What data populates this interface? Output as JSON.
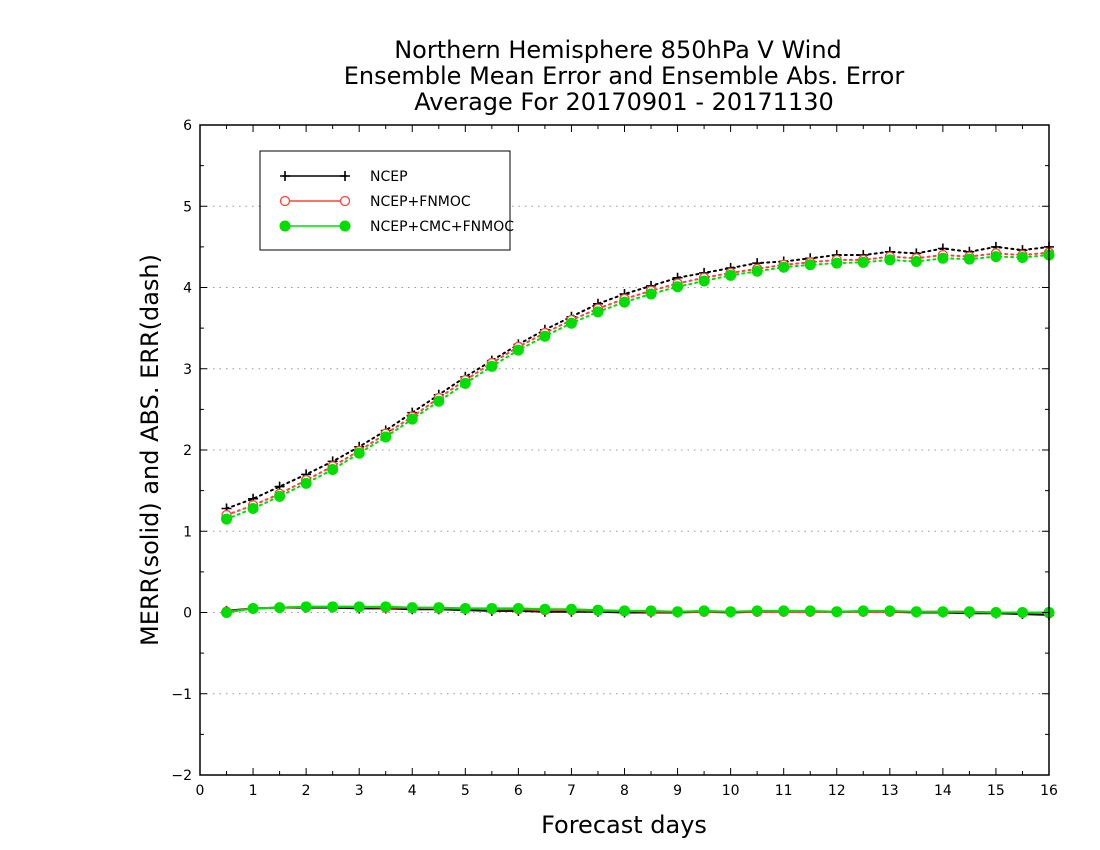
{
  "chart_data": {
    "type": "line",
    "title": [
      "Northern Hemisphere 850hPa V Wind",
      "Ensemble Mean Error and Ensemble Abs. Error",
      "Average For 20170901 - 20171130"
    ],
    "xlabel": "Forecast days",
    "ylabel": "MERR(solid) and ABS. ERR(dash)",
    "xlim": [
      0,
      16
    ],
    "ylim": [
      -2,
      6
    ],
    "xticks": [
      0,
      1,
      2,
      3,
      4,
      5,
      6,
      7,
      8,
      9,
      10,
      11,
      12,
      13,
      14,
      15,
      16
    ],
    "yticks": [
      -2,
      -1,
      0,
      1,
      2,
      3,
      4,
      5,
      6
    ],
    "ytick_labels": [
      "−2",
      "−1",
      "0",
      "1",
      "2",
      "3",
      "4",
      "5",
      "6"
    ],
    "grid": "horizontal dotted",
    "legend_position": "top-left",
    "x": [
      0.5,
      1,
      1.5,
      2,
      2.5,
      3,
      3.5,
      4,
      4.5,
      5,
      5.5,
      6,
      6.5,
      7,
      7.5,
      8,
      8.5,
      9,
      9.5,
      10,
      10.5,
      11,
      11.5,
      12,
      12.5,
      13,
      13.5,
      14,
      14.5,
      15,
      15.5,
      16
    ],
    "series": [
      {
        "name": "NCEP",
        "color": "#000000",
        "marker": "plus",
        "merr": [
          0.02,
          0.05,
          0.06,
          0.06,
          0.06,
          0.05,
          0.05,
          0.04,
          0.04,
          0.03,
          0.02,
          0.02,
          0.01,
          0.01,
          0.01,
          0.0,
          0.0,
          0.0,
          0.01,
          0.0,
          0.01,
          0.01,
          0.01,
          0.01,
          0.01,
          0.01,
          0.0,
          0.0,
          -0.01,
          -0.01,
          -0.02,
          -0.03
        ],
        "abs_err": [
          1.28,
          1.4,
          1.55,
          1.7,
          1.86,
          2.04,
          2.24,
          2.46,
          2.68,
          2.9,
          3.1,
          3.3,
          3.48,
          3.64,
          3.8,
          3.92,
          4.02,
          4.12,
          4.18,
          4.24,
          4.3,
          4.32,
          4.36,
          4.4,
          4.4,
          4.44,
          4.42,
          4.48,
          4.44,
          4.5,
          4.46,
          4.5
        ]
      },
      {
        "name": "NCEP+FNMOC",
        "color": "#ff4040",
        "marker": "open-circle",
        "merr": [
          0.01,
          0.05,
          0.06,
          0.07,
          0.07,
          0.07,
          0.06,
          0.06,
          0.05,
          0.05,
          0.04,
          0.04,
          0.03,
          0.03,
          0.02,
          0.02,
          0.01,
          0.01,
          0.01,
          0.01,
          0.01,
          0.01,
          0.01,
          0.01,
          0.01,
          0.01,
          0.01,
          0.01,
          0.01,
          0.0,
          0.0,
          -0.01
        ],
        "abs_err": [
          1.2,
          1.32,
          1.46,
          1.63,
          1.8,
          1.99,
          2.2,
          2.41,
          2.64,
          2.86,
          3.07,
          3.27,
          3.44,
          3.6,
          3.74,
          3.86,
          3.96,
          4.05,
          4.12,
          4.18,
          4.23,
          4.28,
          4.31,
          4.34,
          4.34,
          4.38,
          4.36,
          4.4,
          4.38,
          4.42,
          4.4,
          4.43
        ]
      },
      {
        "name": "NCEP+CMC+FNMOC",
        "color": "#00dd00",
        "marker": "filled-circle",
        "merr": [
          0.0,
          0.05,
          0.06,
          0.07,
          0.07,
          0.07,
          0.07,
          0.06,
          0.06,
          0.05,
          0.05,
          0.05,
          0.04,
          0.04,
          0.03,
          0.02,
          0.02,
          0.01,
          0.02,
          0.01,
          0.02,
          0.02,
          0.02,
          0.01,
          0.02,
          0.02,
          0.01,
          0.01,
          0.01,
          0.0,
          0.0,
          0.0
        ],
        "abs_err": [
          1.15,
          1.28,
          1.43,
          1.59,
          1.76,
          1.96,
          2.16,
          2.38,
          2.6,
          2.82,
          3.03,
          3.23,
          3.4,
          3.56,
          3.7,
          3.82,
          3.92,
          4.01,
          4.08,
          4.15,
          4.2,
          4.25,
          4.28,
          4.3,
          4.31,
          4.34,
          4.32,
          4.36,
          4.35,
          4.38,
          4.37,
          4.4
        ]
      }
    ]
  }
}
